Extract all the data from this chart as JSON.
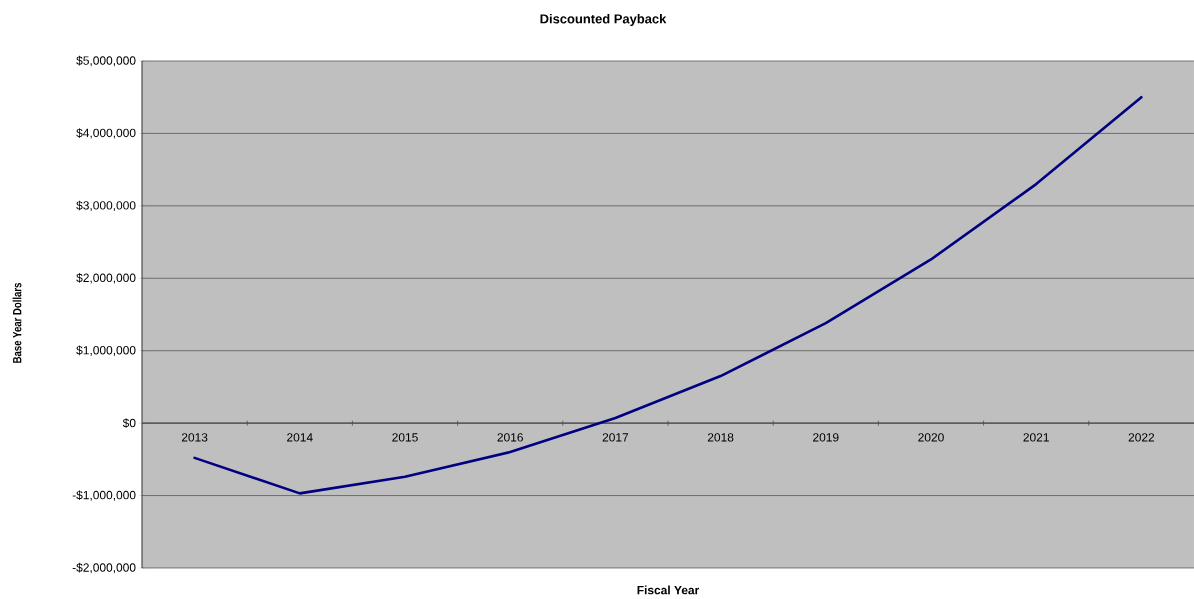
{
  "chart_data": {
    "type": "line",
    "title": "Discounted Payback",
    "xlabel": "Fiscal Year",
    "ylabel": "Base Year Dollars",
    "categories": [
      "2013",
      "2014",
      "2015",
      "2016",
      "2017",
      "2018",
      "2019",
      "2020",
      "2021",
      "2022"
    ],
    "series": [
      {
        "color": "#000080",
        "values": [
          -480000,
          -970000,
          -740000,
          -400000,
          70000,
          650000,
          1380000,
          2260000,
          3300000,
          4500000
        ]
      }
    ],
    "ylim": [
      -2000000,
      5000000
    ],
    "yticks": [
      {
        "value": -2000000,
        "label": "-$2,000,000"
      },
      {
        "value": -1000000,
        "label": "-$1,000,000"
      },
      {
        "value": 0,
        "label": "$0"
      },
      {
        "value": 1000000,
        "label": "$1,000,000"
      },
      {
        "value": 2000000,
        "label": "$2,000,000"
      },
      {
        "value": 3000000,
        "label": "$3,000,000"
      },
      {
        "value": 4000000,
        "label": "$4,000,000"
      },
      {
        "value": 5000000,
        "label": "$5,000,000"
      }
    ],
    "grid": "y",
    "marker": "none",
    "line_style": "solid"
  }
}
